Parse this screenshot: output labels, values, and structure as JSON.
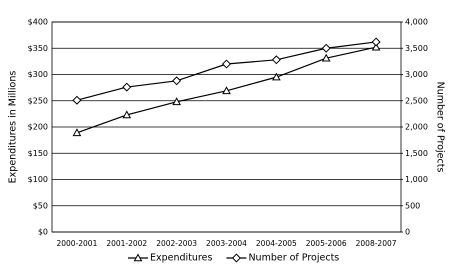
{
  "chart_data": {
    "type": "line",
    "categories": [
      "2000-2001",
      "2001-2002",
      "2002-2003",
      "2003-2004",
      "2004-2005",
      "2005-2006",
      "2008-2007"
    ],
    "y_label": "Expenditures in Millions",
    "y2_label": "Number of Projects",
    "series": [
      {
        "name": "Expenditures",
        "color": "#000000",
        "marker": "triangle",
        "values": [
          189,
          223,
          248,
          269,
          295,
          331,
          352
        ]
      },
      {
        "name": "Number of Projects",
        "color": "#000000",
        "marker": "diamond",
        "axis": "y2",
        "values": [
          2510,
          2760,
          2880,
          3200,
          3280,
          3500,
          3620
        ]
      }
    ],
    "ylim": [
      0,
      400
    ],
    "yticks": [
      {
        "value": 0,
        "label": "$0"
      },
      {
        "value": 50,
        "label": "$50"
      },
      {
        "value": 100,
        "label": "$100"
      },
      {
        "value": 150,
        "label": "$150"
      },
      {
        "value": 200,
        "label": "$200"
      },
      {
        "value": 250,
        "label": "$250"
      },
      {
        "value": 300,
        "label": "$300"
      },
      {
        "value": 350,
        "label": "$350"
      },
      {
        "value": 400,
        "label": "$400"
      }
    ],
    "y2lim": [
      0,
      4000
    ],
    "y2ticks": [
      0,
      500,
      {
        "value": 1000,
        "label": "1,000"
      },
      {
        "value": 1500,
        "label": "1,500"
      },
      {
        "value": 2000,
        "label": "2,000"
      },
      {
        "value": 2500,
        "label": "2,500"
      },
      {
        "value": 3000,
        "label": "3,000"
      },
      {
        "value": 3500,
        "label": "3,500"
      },
      {
        "value": 4000,
        "label": "4,000"
      }
    ],
    "grid": true,
    "legend": "bottom"
  }
}
